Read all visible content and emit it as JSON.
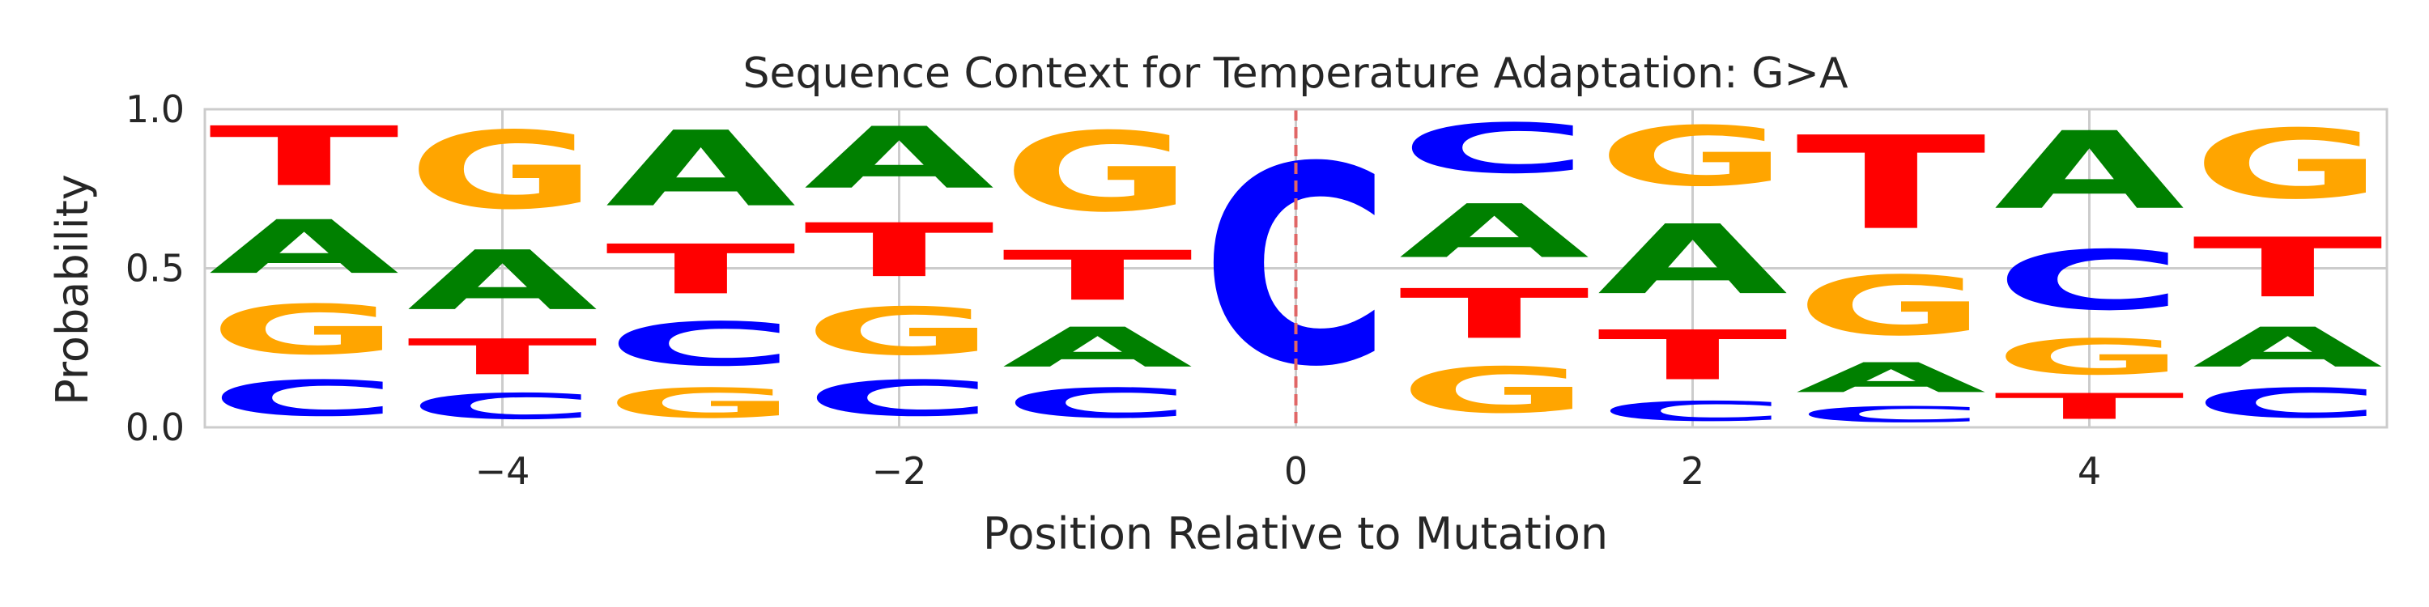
{
  "chart_data": {
    "type": "sequence-logo",
    "title": "Sequence Context for Temperature Adaptation: G>A",
    "xlabel": "Position Relative to Mutation",
    "ylabel": "Probability",
    "xlim": [
      -5.5,
      5.5
    ],
    "ylim": [
      0,
      1
    ],
    "x_ticks": [
      -4,
      -2,
      0,
      2,
      4
    ],
    "y_ticks": [
      0.0,
      0.5,
      1.0
    ],
    "x_tick_labels": [
      "−4",
      "−2",
      "0",
      "2",
      "4"
    ],
    "y_tick_labels": [
      "0.0",
      "0.5",
      "1.0"
    ],
    "grid": true,
    "mutation_position": 0,
    "mutation_line_color": "#e06666",
    "letter_colors": {
      "A": "#008000",
      "C": "#0000ff",
      "G": "#ffa500",
      "T": "#ff0000"
    },
    "positions": [
      {
        "x": -5,
        "stack": [
          {
            "letter": "C",
            "p": 0.18
          },
          {
            "letter": "G",
            "p": 0.25
          },
          {
            "letter": "A",
            "p": 0.27
          },
          {
            "letter": "T",
            "p": 0.3
          }
        ]
      },
      {
        "x": -4,
        "stack": [
          {
            "letter": "C",
            "p": 0.13
          },
          {
            "letter": "T",
            "p": 0.18
          },
          {
            "letter": "A",
            "p": 0.3
          },
          {
            "letter": "G",
            "p": 0.39
          }
        ]
      },
      {
        "x": -3,
        "stack": [
          {
            "letter": "G",
            "p": 0.15
          },
          {
            "letter": "C",
            "p": 0.22
          },
          {
            "letter": "T",
            "p": 0.25
          },
          {
            "letter": "A",
            "p": 0.38
          }
        ]
      },
      {
        "x": -2,
        "stack": [
          {
            "letter": "C",
            "p": 0.18
          },
          {
            "letter": "G",
            "p": 0.24
          },
          {
            "letter": "T",
            "p": 0.27
          },
          {
            "letter": "A",
            "p": 0.31
          }
        ]
      },
      {
        "x": -1,
        "stack": [
          {
            "letter": "C",
            "p": 0.15
          },
          {
            "letter": "A",
            "p": 0.2
          },
          {
            "letter": "T",
            "p": 0.25
          },
          {
            "letter": "G",
            "p": 0.4
          }
        ]
      },
      {
        "x": 0,
        "stack": [
          {
            "letter": "C",
            "p": 1.0
          }
        ]
      },
      {
        "x": 1,
        "stack": [
          {
            "letter": "G",
            "p": 0.23
          },
          {
            "letter": "T",
            "p": 0.25
          },
          {
            "letter": "A",
            "p": 0.27
          },
          {
            "letter": "C",
            "p": 0.25
          }
        ]
      },
      {
        "x": 2,
        "stack": [
          {
            "letter": "C",
            "p": 0.1
          },
          {
            "letter": "T",
            "p": 0.25
          },
          {
            "letter": "A",
            "p": 0.35
          },
          {
            "letter": "G",
            "p": 0.3
          }
        ]
      },
      {
        "x": 3,
        "stack": [
          {
            "letter": "C",
            "p": 0.08
          },
          {
            "letter": "A",
            "p": 0.15
          },
          {
            "letter": "G",
            "p": 0.3
          },
          {
            "letter": "T",
            "p": 0.47
          }
        ]
      },
      {
        "x": 4,
        "stack": [
          {
            "letter": "T",
            "p": 0.13
          },
          {
            "letter": "G",
            "p": 0.18
          },
          {
            "letter": "C",
            "p": 0.3
          },
          {
            "letter": "A",
            "p": 0.39
          }
        ]
      },
      {
        "x": 5,
        "stack": [
          {
            "letter": "C",
            "p": 0.15
          },
          {
            "letter": "A",
            "p": 0.2
          },
          {
            "letter": "T",
            "p": 0.3
          },
          {
            "letter": "G",
            "p": 0.35
          }
        ]
      }
    ]
  }
}
